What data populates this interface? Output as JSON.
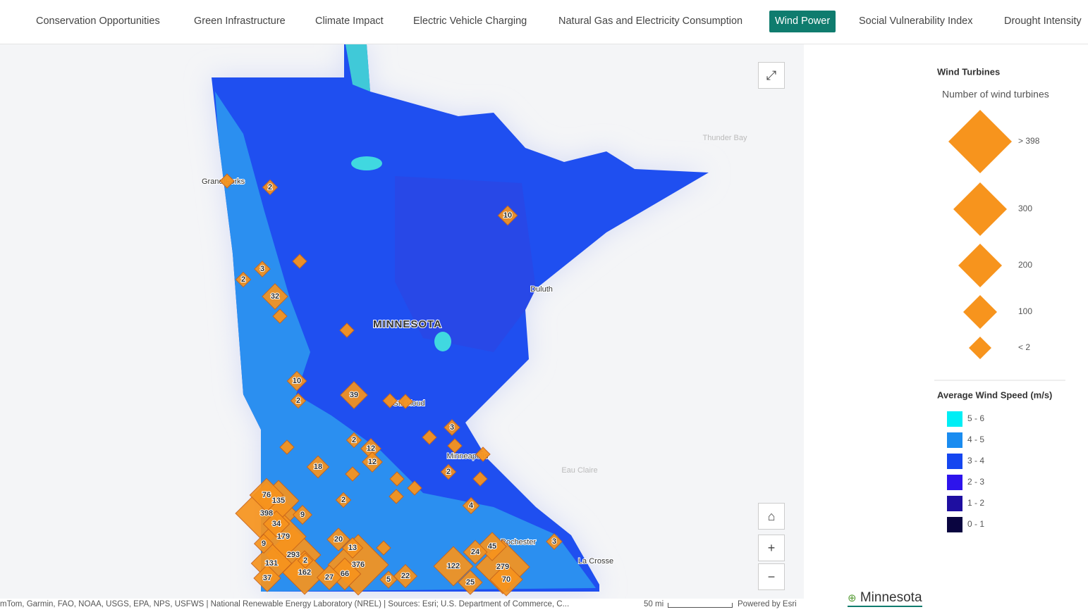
{
  "nav": {
    "tabs": [
      "Conservation Opportunities",
      "Green Infrastructure",
      "Climate Impact",
      "Electric Vehicle Charging",
      "Natural Gas and Electricity Consumption",
      "Wind Power",
      "Social Vulnerability Index",
      "Drought Intensity"
    ],
    "active": 5
  },
  "map": {
    "place_labels": [
      "Grand Forks",
      "MINNESOTA",
      "Duluth",
      "St. Cloud",
      "Minneapolis",
      "Rochester",
      "La Crosse",
      "Eau Claire",
      "Thunder Bay"
    ],
    "markers": [
      2,
      10,
      3,
      2,
      32,
      10,
      2,
      39,
      3,
      2,
      12,
      12,
      18,
      2,
      2,
      4,
      76,
      135,
      398,
      9,
      34,
      179,
      9,
      20,
      13,
      3,
      24,
      45,
      293,
      2,
      376,
      131,
      122,
      279,
      162,
      66,
      27,
      22,
      5,
      37,
      25,
      70
    ],
    "attribution": "mTom, Garmin, FAO, NOAA, USGS, EPA, NPS, USFWS | National Renewable Energy Laboratory (NREL) | Sources: Esri; U.S. Department of Commerce, C...",
    "scale": "50 mi",
    "powered_by": "Powered by Esri"
  },
  "legend": {
    "turbines": {
      "title": "Wind Turbines",
      "subtitle": "Number of wind turbines",
      "sizes": [
        "> 398",
        "300",
        "200",
        "100",
        "< 2"
      ],
      "color": "#f7941d"
    },
    "wind": {
      "title": "Average Wind Speed (m/s)",
      "classes": [
        {
          "label": "5 - 6",
          "color": "#00eef5"
        },
        {
          "label": "4 - 5",
          "color": "#1a8cf0"
        },
        {
          "label": "3 - 4",
          "color": "#1546f0"
        },
        {
          "label": "2 - 3",
          "color": "#2d14ec"
        },
        {
          "label": "1 - 2",
          "color": "#1e0ea0"
        },
        {
          "label": "0 - 1",
          "color": "#0a0540"
        }
      ]
    }
  },
  "footer": {
    "location": "Minnesota"
  }
}
